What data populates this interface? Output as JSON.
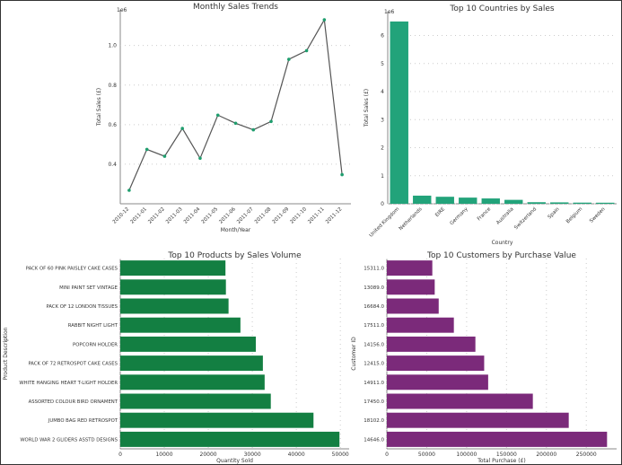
{
  "chart_data": [
    {
      "type": "line",
      "title": "Monthly Sales Trends",
      "xlabel": "Month/Year",
      "ylabel": "Total Sales (£)",
      "y_multiplier": "1e6",
      "x": [
        "2010-12",
        "2011-01",
        "2011-02",
        "2011-03",
        "2011-04",
        "2011-05",
        "2011-06",
        "2011-07",
        "2011-08",
        "2011-09",
        "2011-10",
        "2011-11",
        "2011-12"
      ],
      "values": [
        0.268,
        0.475,
        0.44,
        0.581,
        0.43,
        0.648,
        0.607,
        0.574,
        0.616,
        0.93,
        0.974,
        1.13,
        0.347
      ],
      "yticks": [
        0.4,
        0.6,
        0.8,
        1.0
      ],
      "ylim": [
        0.2,
        1.18
      ],
      "grid": true,
      "color": "#555555",
      "marker_color": "#1f9e6e"
    },
    {
      "type": "bar",
      "title": "Top 10 Countries by Sales",
      "xlabel": "Country",
      "ylabel": "Total Sales (£)",
      "y_multiplier": "1e6",
      "categories": [
        "United Kingdom",
        "Netherlands",
        "EIRE",
        "Germany",
        "France",
        "Australia",
        "Switzerland",
        "Spain",
        "Belgium",
        "Sweden"
      ],
      "values": [
        6.5,
        0.29,
        0.25,
        0.22,
        0.19,
        0.14,
        0.056,
        0.05,
        0.041,
        0.038
      ],
      "yticks": [
        0,
        1,
        2,
        3,
        4,
        5,
        6
      ],
      "ylim": [
        0,
        6.85
      ],
      "grid": true,
      "color": "#22a37a"
    },
    {
      "type": "bar",
      "orientation": "horizontal",
      "title": "Top 10 Products by Sales Volume",
      "xlabel": "Quantity Sold",
      "ylabel": "Product Description",
      "categories": [
        "WORLD WAR 2 GLIDERS ASSTD DESIGNS",
        "JUMBO BAG RED RETROSPOT",
        "ASSORTED COLOUR BIRD ORNAMENT",
        "WHITE HANGING HEART T-LIGHT HOLDER",
        "PACK OF 72 RETROSPOT CAKE CASES",
        "POPCORN HOLDER",
        "RABBIT NIGHT LIGHT",
        "PACK OF 12 LONDON TISSUES",
        "MINI PAINT SET VINTAGE",
        "PACK OF 60 PINK PAISLEY CAKE CASES"
      ],
      "values": [
        49800,
        43900,
        34200,
        32800,
        32400,
        30800,
        27300,
        24600,
        24000,
        23900
      ],
      "xticks": [
        0,
        10000,
        20000,
        30000,
        40000,
        50000
      ],
      "xlim": [
        0,
        52000
      ],
      "grid": true,
      "color": "#137f42"
    },
    {
      "type": "bar",
      "orientation": "horizontal",
      "title": "Top 10 Customers by Purchase Value",
      "xlabel": "Total Purchase (£)",
      "ylabel": "Customer ID",
      "categories": [
        "14646.0",
        "18102.0",
        "17450.0",
        "14911.0",
        "12415.0",
        "14156.0",
        "17511.0",
        "16684.0",
        "13089.0",
        "15311.0"
      ],
      "values": [
        276000,
        228000,
        183000,
        127000,
        122000,
        111000,
        84000,
        65000,
        60000,
        57000
      ],
      "xticks": [
        0,
        50000,
        100000,
        150000,
        200000,
        250000
      ],
      "xlim": [
        0,
        288000
      ],
      "grid": true,
      "color": "#7b2a7a"
    }
  ]
}
